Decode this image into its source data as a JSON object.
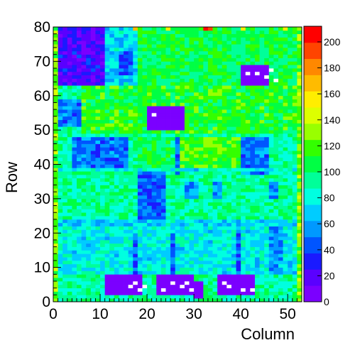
{
  "chart_data": {
    "type": "heatmap",
    "title": "",
    "xlabel": "Column",
    "ylabel": "Row",
    "xlim": [
      0,
      53
    ],
    "ylim": [
      0,
      80
    ],
    "x_ticks": [
      0,
      10,
      20,
      30,
      40,
      50
    ],
    "y_ticks": [
      0,
      10,
      20,
      30,
      40,
      50,
      60,
      70,
      80
    ],
    "grid": false,
    "colorbar": {
      "min": 0,
      "max": 212,
      "ticks": [
        0,
        20,
        40,
        60,
        80,
        100,
        120,
        140,
        160,
        180,
        200
      ],
      "palette": [
        "#7b00ff",
        "#5a00ff",
        "#1a1aff",
        "#0055ff",
        "#0099ff",
        "#00ccff",
        "#00ffe0",
        "#00ff99",
        "#00ff44",
        "#33ff00",
        "#99ff00",
        "#ddff00",
        "#ffee00",
        "#ffbb00",
        "#ff8800",
        "#ff4400",
        "#ff0000"
      ]
    },
    "n_columns": 53,
    "n_rows": 80,
    "base_value": 92,
    "regions": [
      {
        "x": [
          0,
          11
        ],
        "y": [
          63,
          80
        ],
        "value": 22
      },
      {
        "x": [
          11,
          18
        ],
        "y": [
          63,
          80
        ],
        "value": 72
      },
      {
        "x": [
          14,
          17
        ],
        "y": [
          66,
          73
        ],
        "value": 42
      },
      {
        "x": [
          18,
          53
        ],
        "y": [
          63,
          80
        ],
        "value": 105
      },
      {
        "x": [
          1,
          6
        ],
        "y": [
          51,
          59
        ],
        "value": 52
      },
      {
        "x": [
          6,
          53
        ],
        "y": [
          49,
          63
        ],
        "value": 112
      },
      {
        "x": [
          20,
          28
        ],
        "y": [
          50,
          57
        ],
        "value": 4
      },
      {
        "x": [
          4,
          16
        ],
        "y": [
          38,
          48
        ],
        "value": 48
      },
      {
        "x": [
          18,
          25
        ],
        "y": [
          38,
          48
        ],
        "value": 105
      },
      {
        "x": [
          26,
          27
        ],
        "y": [
          37,
          48
        ],
        "value": 45
      },
      {
        "x": [
          27,
          40
        ],
        "y": [
          38,
          48
        ],
        "value": 118
      },
      {
        "x": [
          40,
          46
        ],
        "y": [
          37,
          48
        ],
        "value": 52
      },
      {
        "x": [
          18,
          24
        ],
        "y": [
          24,
          38
        ],
        "value": 45
      },
      {
        "x": [
          28,
          31
        ],
        "y": [
          30,
          35
        ],
        "value": 55
      },
      {
        "x": [
          34,
          36
        ],
        "y": [
          30,
          35
        ],
        "value": 55
      },
      {
        "x": [
          46,
          48
        ],
        "y": [
          30,
          35
        ],
        "value": 55
      },
      {
        "x": [
          0,
          53
        ],
        "y": [
          22,
          24
        ],
        "value": 72
      },
      {
        "x": [
          0,
          53
        ],
        "y": [
          38,
          39
        ],
        "value": 78
      },
      {
        "x": [
          0,
          53
        ],
        "y": [
          8,
          22
        ],
        "value": 78
      },
      {
        "x": [
          17,
          18
        ],
        "y": [
          8,
          20
        ],
        "value": 45
      },
      {
        "x": [
          25,
          26
        ],
        "y": [
          8,
          20
        ],
        "value": 45
      },
      {
        "x": [
          39,
          40
        ],
        "y": [
          8,
          20
        ],
        "value": 45
      },
      {
        "x": [
          46,
          49
        ],
        "y": [
          8,
          22
        ],
        "value": 58
      },
      {
        "x": [
          40,
          46
        ],
        "y": [
          63,
          69
        ],
        "value": 4
      },
      {
        "x": [
          11,
          19
        ],
        "y": [
          2,
          8
        ],
        "value": 4
      },
      {
        "x": [
          22,
          30
        ],
        "y": [
          2,
          8
        ],
        "value": 4
      },
      {
        "x": [
          30,
          32
        ],
        "y": [
          1,
          6
        ],
        "value": 4
      },
      {
        "x": [
          35,
          43
        ],
        "y": [
          2,
          8
        ],
        "value": 4
      },
      {
        "x": [
          0,
          1
        ],
        "y": [
          0,
          80
        ],
        "value": 125
      },
      {
        "x": [
          52,
          53
        ],
        "y": [
          0,
          80
        ],
        "value": 125
      }
    ],
    "empty_cells": [
      [
        43,
        66
      ],
      [
        45,
        65
      ],
      [
        46,
        67
      ],
      [
        47,
        64
      ],
      [
        41,
        66
      ],
      [
        21,
        54
      ],
      [
        16,
        4
      ],
      [
        17,
        5
      ],
      [
        18,
        3
      ],
      [
        19,
        4
      ],
      [
        23,
        3
      ],
      [
        25,
        5
      ],
      [
        27,
        4
      ],
      [
        28,
        5
      ],
      [
        29,
        3
      ],
      [
        36,
        5
      ],
      [
        37,
        4
      ],
      [
        40,
        3
      ],
      [
        42,
        3
      ]
    ],
    "hot_cells": [
      [
        32,
        79,
        212
      ],
      [
        33,
        79,
        195
      ],
      [
        17,
        79,
        165
      ],
      [
        24,
        79,
        155
      ],
      [
        40,
        79,
        160
      ],
      [
        49,
        79,
        150
      ]
    ]
  }
}
